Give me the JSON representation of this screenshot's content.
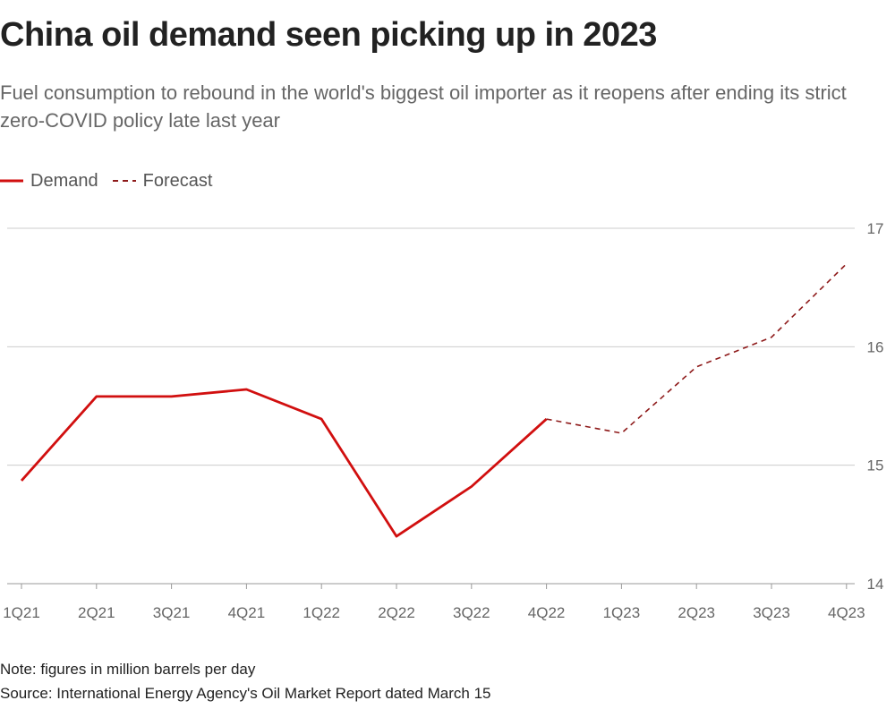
{
  "title": "China oil demand seen picking up in 2023",
  "subtitle": "Fuel consumption to rebound in the world's biggest oil importer as it reopens after ending its strict zero-COVID policy late last year",
  "legend": {
    "demand": "Demand",
    "forecast": "Forecast"
  },
  "note": "Note: figures in million barrels per day",
  "source": "Source: International Energy Agency's Oil Market Report dated March 15",
  "colors": {
    "line": "#d10f0f",
    "forecast": "#8e1a1a",
    "grid": "#cccccc"
  },
  "chart_data": {
    "type": "line",
    "categories": [
      "1Q21",
      "2Q21",
      "3Q21",
      "4Q21",
      "1Q22",
      "2Q22",
      "3Q22",
      "4Q22",
      "1Q23",
      "2Q23",
      "3Q23",
      "4Q23"
    ],
    "series": [
      {
        "name": "Demand",
        "style": "solid",
        "x": [
          "1Q21",
          "2Q21",
          "3Q21",
          "4Q21",
          "1Q22",
          "2Q22",
          "3Q22",
          "4Q22"
        ],
        "values": [
          14.87,
          15.58,
          15.58,
          15.64,
          15.39,
          14.4,
          14.82,
          15.39
        ]
      },
      {
        "name": "Forecast",
        "style": "dashed",
        "x": [
          "4Q22",
          "1Q23",
          "2Q23",
          "3Q23",
          "4Q23"
        ],
        "values": [
          15.39,
          15.27,
          15.83,
          16.08,
          16.7
        ]
      }
    ],
    "yticks": [
      14,
      15,
      16,
      17
    ],
    "ylim": [
      14,
      17
    ],
    "y_axis_side": "right",
    "grid": true,
    "legend_position": "top-left"
  }
}
